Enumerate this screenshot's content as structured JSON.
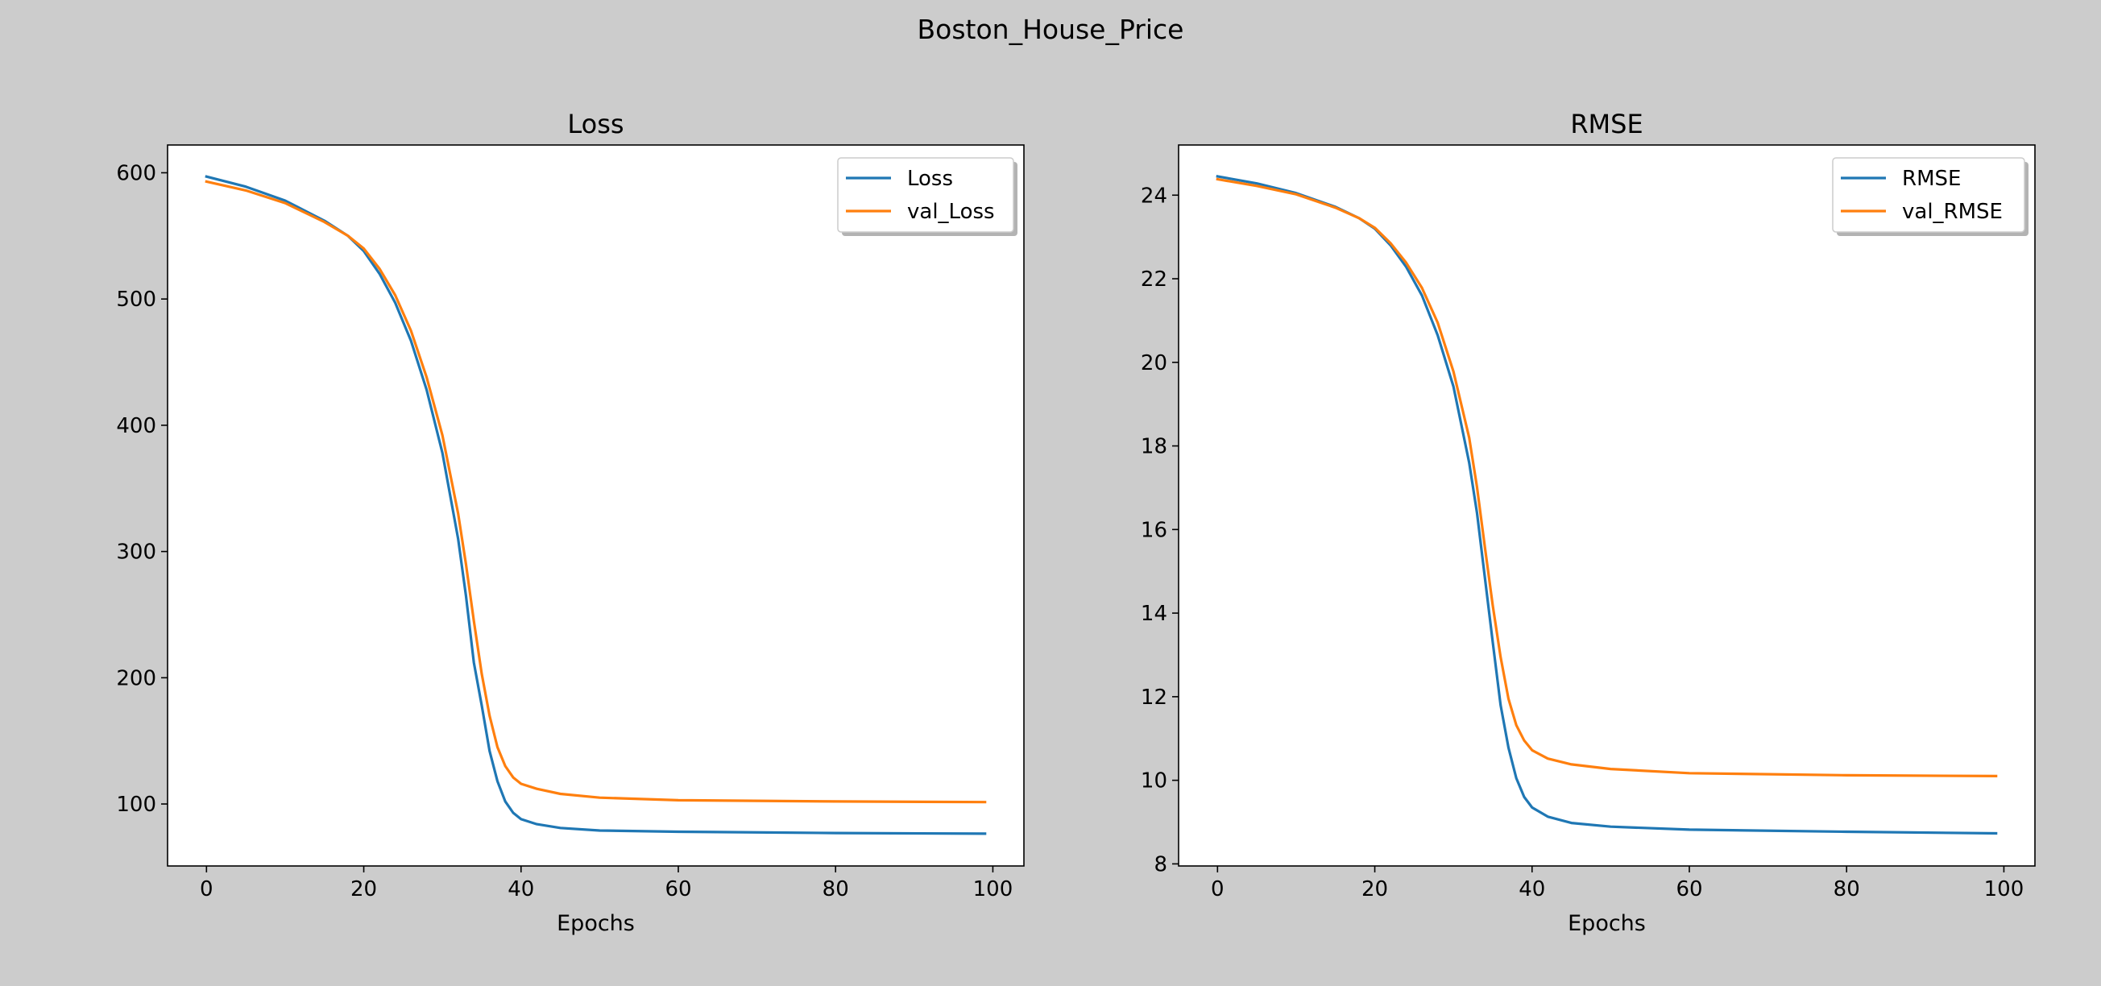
{
  "figure": {
    "suptitle": "Boston_House_Price",
    "background": "#cccccc",
    "colors": {
      "train": "#1f77b4",
      "val": "#ff7f0e"
    }
  },
  "chart_data": [
    {
      "type": "line",
      "title": "Loss",
      "xlabel": "Epochs",
      "ylabel": "",
      "xlim": [
        -4.95,
        103.95
      ],
      "ylim": [
        50.9,
        622.0
      ],
      "xticks": [
        0,
        20,
        40,
        60,
        80,
        100
      ],
      "yticks": [
        100,
        200,
        300,
        400,
        500,
        600
      ],
      "legend": "top-right",
      "grid": false,
      "series": [
        {
          "name": "Loss",
          "color": "#1f77b4",
          "points": [
            [
              0,
              597
            ],
            [
              5,
              589
            ],
            [
              10,
              578
            ],
            [
              15,
              562
            ],
            [
              18,
              550
            ],
            [
              20,
              538
            ],
            [
              22,
              520
            ],
            [
              24,
              497
            ],
            [
              26,
              467
            ],
            [
              28,
              428
            ],
            [
              30,
              378
            ],
            [
              32,
              310
            ],
            [
              33,
              265
            ],
            [
              34,
              212
            ],
            [
              35,
              178
            ],
            [
              36,
              142
            ],
            [
              37,
              118
            ],
            [
              38,
              102
            ],
            [
              39,
              93
            ],
            [
              40,
              88
            ],
            [
              42,
              84
            ],
            [
              45,
              81
            ],
            [
              50,
              79
            ],
            [
              60,
              78
            ],
            [
              80,
              77
            ],
            [
              99,
              76.5
            ]
          ]
        },
        {
          "name": "val_Loss",
          "color": "#ff7f0e",
          "points": [
            [
              0,
              593
            ],
            [
              5,
              586
            ],
            [
              10,
              576
            ],
            [
              15,
              561
            ],
            [
              18,
              550
            ],
            [
              20,
              540
            ],
            [
              22,
              524
            ],
            [
              24,
              503
            ],
            [
              26,
              475
            ],
            [
              28,
              438
            ],
            [
              30,
              392
            ],
            [
              32,
              330
            ],
            [
              33,
              290
            ],
            [
              34,
              245
            ],
            [
              35,
              203
            ],
            [
              36,
              170
            ],
            [
              37,
              145
            ],
            [
              38,
              130
            ],
            [
              39,
              121
            ],
            [
              40,
              116
            ],
            [
              42,
              112
            ],
            [
              45,
              108
            ],
            [
              50,
              105
            ],
            [
              60,
              103
            ],
            [
              80,
              102
            ],
            [
              99,
              101.5
            ]
          ]
        }
      ]
    },
    {
      "type": "line",
      "title": "RMSE",
      "xlabel": "Epochs",
      "ylabel": "",
      "xlim": [
        -4.95,
        103.95
      ],
      "ylim": [
        7.95,
        25.2
      ],
      "xticks": [
        0,
        20,
        40,
        60,
        80,
        100
      ],
      "yticks": [
        8,
        10,
        12,
        14,
        16,
        18,
        20,
        22,
        24
      ],
      "legend": "top-right",
      "grid": false,
      "series": [
        {
          "name": "RMSE",
          "color": "#1f77b4",
          "points": [
            [
              0,
              24.45
            ],
            [
              5,
              24.28
            ],
            [
              10,
              24.05
            ],
            [
              15,
              23.72
            ],
            [
              18,
              23.45
            ],
            [
              20,
              23.2
            ],
            [
              22,
              22.8
            ],
            [
              24,
              22.28
            ],
            [
              26,
              21.6
            ],
            [
              28,
              20.65
            ],
            [
              30,
              19.42
            ],
            [
              32,
              17.6
            ],
            [
              33,
              16.4
            ],
            [
              34,
              14.85
            ],
            [
              35,
              13.3
            ],
            [
              36,
              11.8
            ],
            [
              37,
              10.78
            ],
            [
              38,
              10.05
            ],
            [
              39,
              9.6
            ],
            [
              40,
              9.35
            ],
            [
              42,
              9.13
            ],
            [
              45,
              8.98
            ],
            [
              50,
              8.89
            ],
            [
              60,
              8.82
            ],
            [
              80,
              8.77
            ],
            [
              99,
              8.73
            ]
          ]
        },
        {
          "name": "val_RMSE",
          "color": "#ff7f0e",
          "points": [
            [
              0,
              24.38
            ],
            [
              5,
              24.22
            ],
            [
              10,
              24.02
            ],
            [
              15,
              23.7
            ],
            [
              18,
              23.45
            ],
            [
              20,
              23.22
            ],
            [
              22,
              22.85
            ],
            [
              24,
              22.38
            ],
            [
              26,
              21.78
            ],
            [
              28,
              20.95
            ],
            [
              30,
              19.78
            ],
            [
              32,
              18.2
            ],
            [
              33,
              17.02
            ],
            [
              34,
              15.58
            ],
            [
              35,
              14.18
            ],
            [
              36,
              12.95
            ],
            [
              37,
              11.95
            ],
            [
              38,
              11.32
            ],
            [
              39,
              10.95
            ],
            [
              40,
              10.72
            ],
            [
              42,
              10.52
            ],
            [
              45,
              10.38
            ],
            [
              50,
              10.27
            ],
            [
              60,
              10.17
            ],
            [
              80,
              10.12
            ],
            [
              99,
              10.1
            ]
          ]
        }
      ]
    }
  ]
}
